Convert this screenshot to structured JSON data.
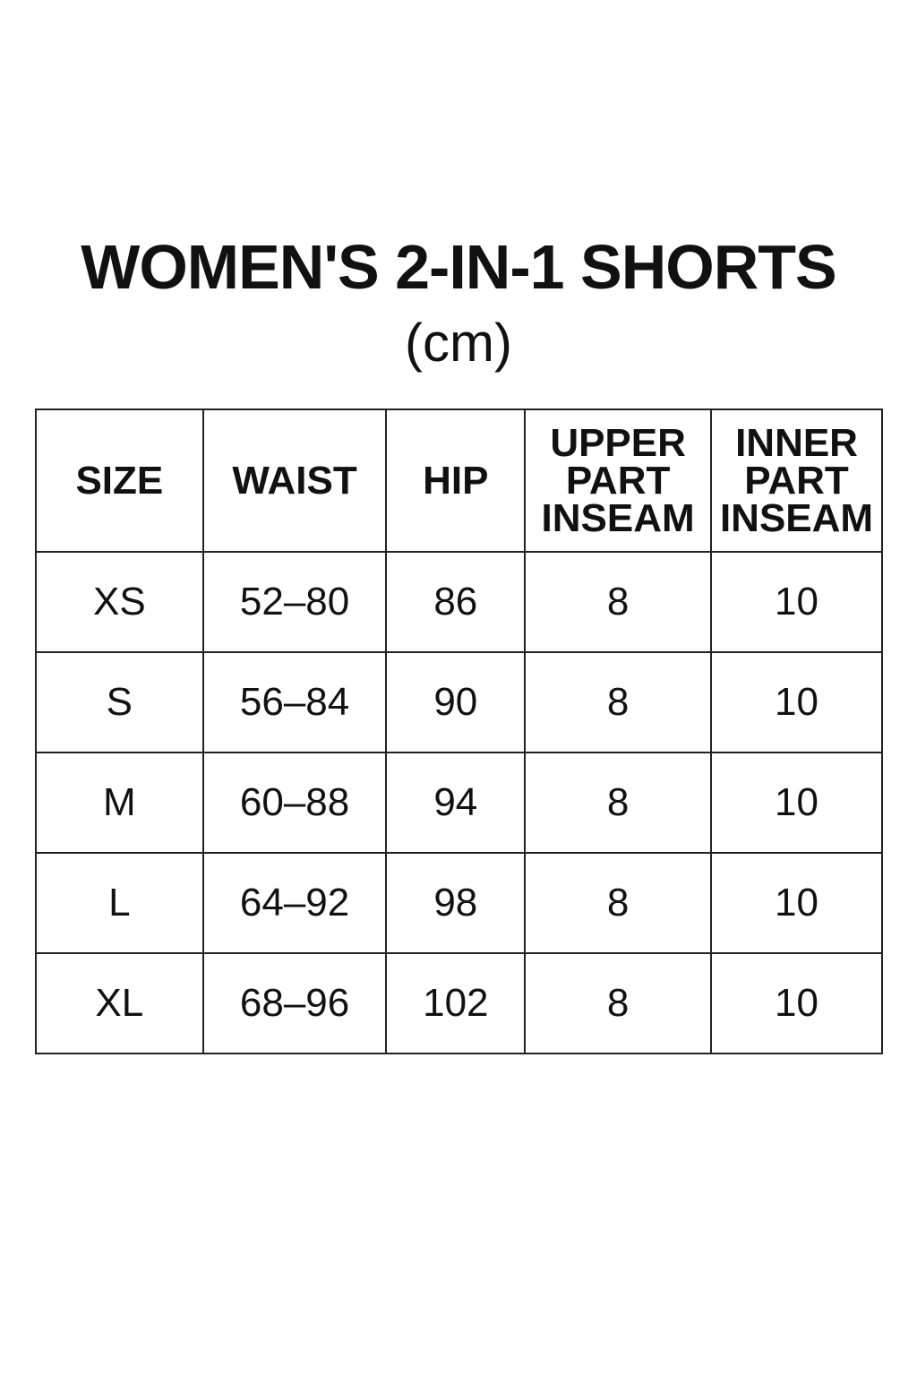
{
  "title": "WOMEN'S 2-IN-1 SHORTS",
  "unit": "(cm)",
  "table": {
    "headers": [
      "SIZE",
      "WAIST",
      "HIP",
      "UPPER PART INSEAM",
      "INNER PART INSEAM"
    ],
    "rows": [
      [
        "XS",
        "52–80",
        "86",
        "8",
        "10"
      ],
      [
        "S",
        "56–84",
        "90",
        "8",
        "10"
      ],
      [
        "M",
        "60–88",
        "94",
        "8",
        "10"
      ],
      [
        "L",
        "64–92",
        "98",
        "8",
        "10"
      ],
      [
        "XL",
        "68–96",
        "102",
        "8",
        "10"
      ]
    ]
  }
}
